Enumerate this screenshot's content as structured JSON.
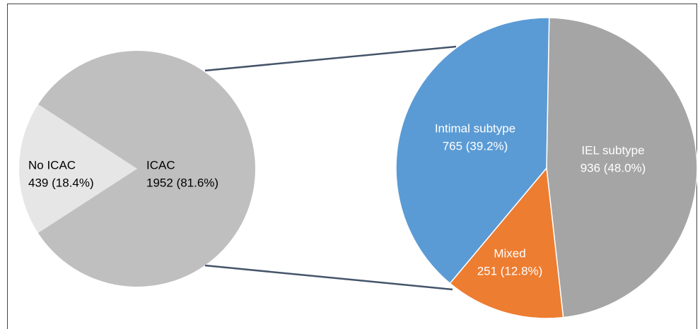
{
  "chart_data": [
    {
      "type": "pie",
      "categories": [
        "No ICAC",
        "ICAC"
      ],
      "values": [
        439,
        1952
      ],
      "value_labels": [
        "439 (18.4%)",
        "1952 (81.6%)"
      ],
      "colors": [
        "#e6e6e6",
        "#bfbfbf"
      ]
    },
    {
      "type": "pie",
      "categories": [
        "IEL subtype",
        "Mixed",
        "Intimal subtype"
      ],
      "values": [
        936,
        251,
        765
      ],
      "value_labels": [
        "936 (48.0%)",
        "251 (12.8%)",
        "765 (39.2%)"
      ],
      "colors": [
        "#a5a5a5",
        "#ed7d31",
        "#5b9bd5"
      ]
    }
  ]
}
